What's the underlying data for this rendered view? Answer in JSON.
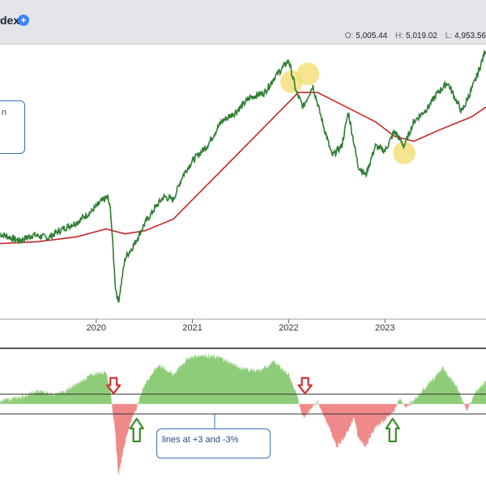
{
  "header": {
    "title": "dex",
    "ohlc": [
      {
        "label": "O:",
        "value": "5,005.44"
      },
      {
        "label": "H:",
        "value": "5,019.02"
      },
      {
        "label": "L:",
        "value": "4,953.56"
      }
    ]
  },
  "colors": {
    "price": "#2e7d32",
    "ma": "#c62828",
    "osc_pos": "#8fcc7a",
    "osc_neg": "#f08a8a",
    "highlight": "#f2dc6a",
    "up_arrow": "#3a8a28",
    "down_arrow": "#d32f2f",
    "callout_border": "#3a6fb5"
  },
  "callouts": {
    "top_left": "n",
    "bottom": "lines at +3 and -3%"
  },
  "chart_data": {
    "type": "line",
    "x_labels": [
      "2020",
      "2021",
      "2022",
      "2023"
    ],
    "price_series": [
      [
        2019.0,
        3000
      ],
      [
        2019.2,
        2930
      ],
      [
        2019.35,
        2990
      ],
      [
        2019.5,
        2960
      ],
      [
        2019.65,
        3050
      ],
      [
        2019.8,
        3120
      ],
      [
        2019.95,
        3230
      ],
      [
        2020.05,
        3330
      ],
      [
        2020.12,
        3380
      ],
      [
        2020.15,
        3230
      ],
      [
        2020.2,
        2450
      ],
      [
        2020.23,
        2300
      ],
      [
        2020.3,
        2750
      ],
      [
        2020.4,
        2900
      ],
      [
        2020.5,
        3100
      ],
      [
        2020.6,
        3250
      ],
      [
        2020.7,
        3380
      ],
      [
        2020.8,
        3350
      ],
      [
        2020.9,
        3600
      ],
      [
        2021.0,
        3750
      ],
      [
        2021.15,
        3900
      ],
      [
        2021.3,
        4150
      ],
      [
        2021.45,
        4250
      ],
      [
        2021.6,
        4400
      ],
      [
        2021.75,
        4450
      ],
      [
        2021.85,
        4600
      ],
      [
        2022.0,
        4780
      ],
      [
        2022.08,
        4450
      ],
      [
        2022.15,
        4300
      ],
      [
        2022.25,
        4520
      ],
      [
        2022.35,
        4150
      ],
      [
        2022.45,
        3800
      ],
      [
        2022.55,
        3900
      ],
      [
        2022.62,
        4250
      ],
      [
        2022.72,
        3700
      ],
      [
        2022.8,
        3600
      ],
      [
        2022.9,
        3900
      ],
      [
        2023.0,
        3850
      ],
      [
        2023.1,
        4050
      ],
      [
        2023.2,
        3900
      ],
      [
        2023.3,
        4150
      ],
      [
        2023.45,
        4300
      ],
      [
        2023.55,
        4450
      ],
      [
        2023.65,
        4550
      ],
      [
        2023.8,
        4250
      ],
      [
        2023.95,
        4600
      ],
      [
        2024.05,
        4900
      ]
    ],
    "ma_series": [
      [
        2019.0,
        2900
      ],
      [
        2019.4,
        2920
      ],
      [
        2019.8,
        2970
      ],
      [
        2020.1,
        3050
      ],
      [
        2020.3,
        3000
      ],
      [
        2020.5,
        3030
      ],
      [
        2020.8,
        3150
      ],
      [
        2021.0,
        3350
      ],
      [
        2021.3,
        3650
      ],
      [
        2021.6,
        3950
      ],
      [
        2021.9,
        4250
      ],
      [
        2022.1,
        4450
      ],
      [
        2022.3,
        4450
      ],
      [
        2022.6,
        4300
      ],
      [
        2022.9,
        4150
      ],
      [
        2023.1,
        4000
      ],
      [
        2023.3,
        3950
      ],
      [
        2023.6,
        4080
      ],
      [
        2023.9,
        4200
      ],
      [
        2024.05,
        4300
      ]
    ],
    "oscillator": [
      [
        2019.0,
        1
      ],
      [
        2019.2,
        2
      ],
      [
        2019.4,
        4
      ],
      [
        2019.6,
        3
      ],
      [
        2019.8,
        6
      ],
      [
        2019.95,
        9
      ],
      [
        2020.1,
        10
      ],
      [
        2020.15,
        4
      ],
      [
        2020.2,
        -10
      ],
      [
        2020.23,
        -22
      ],
      [
        2020.28,
        -14
      ],
      [
        2020.35,
        -6
      ],
      [
        2020.42,
        -1
      ],
      [
        2020.5,
        6
      ],
      [
        2020.65,
        12
      ],
      [
        2020.8,
        9
      ],
      [
        2020.95,
        14
      ],
      [
        2021.1,
        15
      ],
      [
        2021.3,
        14
      ],
      [
        2021.5,
        11
      ],
      [
        2021.7,
        10
      ],
      [
        2021.85,
        13
      ],
      [
        2022.0,
        9
      ],
      [
        2022.08,
        3
      ],
      [
        2022.15,
        -4
      ],
      [
        2022.22,
        -2
      ],
      [
        2022.3,
        1
      ],
      [
        2022.4,
        -6
      ],
      [
        2022.5,
        -13
      ],
      [
        2022.6,
        -9
      ],
      [
        2022.68,
        -4
      ],
      [
        2022.72,
        -10
      ],
      [
        2022.8,
        -13
      ],
      [
        2022.9,
        -7
      ],
      [
        2023.0,
        -5
      ],
      [
        2023.1,
        -2
      ],
      [
        2023.15,
        2
      ],
      [
        2023.2,
        -1
      ],
      [
        2023.3,
        1
      ],
      [
        2023.45,
        6
      ],
      [
        2023.6,
        11
      ],
      [
        2023.75,
        5
      ],
      [
        2023.85,
        -2
      ],
      [
        2023.95,
        4
      ],
      [
        2024.05,
        7
      ]
    ],
    "threshold_lines": [
      3,
      -3
    ],
    "signals": [
      {
        "type": "sell",
        "x": 2020.18
      },
      {
        "type": "buy",
        "x": 2020.42
      },
      {
        "type": "sell",
        "x": 2022.17
      },
      {
        "type": "buy",
        "x": 2023.08
      }
    ],
    "highlights": [
      {
        "x": 2022.03,
        "y": 4560
      },
      {
        "x": 2022.2,
        "y": 4640
      },
      {
        "x": 2023.2,
        "y": 3830
      }
    ]
  }
}
